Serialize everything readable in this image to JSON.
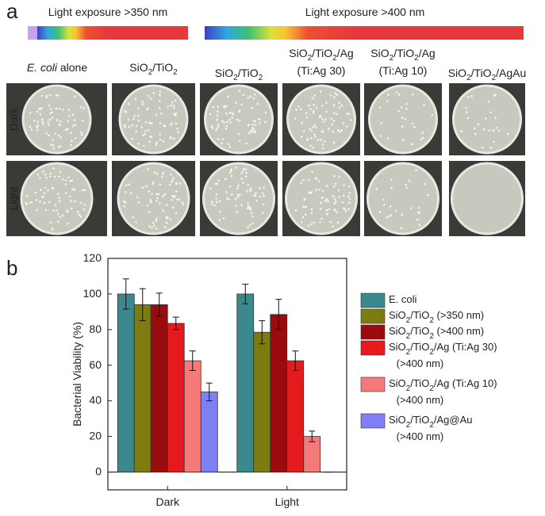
{
  "panel_a": {
    "label": "a",
    "exposures": [
      "Light exposure >350 nm",
      "Light exposure >400 nm"
    ],
    "ecoli": {
      "species": "E. coli",
      "rest": "alone"
    },
    "columns": [
      [
        "SiO2/TiO2"
      ],
      [
        "SiO2/TiO2"
      ],
      [
        "SiO2/TiO2/Ag",
        "(Ti:Ag 30)"
      ],
      [
        "SiO2/TiO2/Ag",
        "(Ti:Ag 10)"
      ],
      [
        "SiO2/TiO2/AgAu"
      ]
    ],
    "rows": [
      "Dark",
      "Light"
    ]
  },
  "panel_b": {
    "label": "b"
  },
  "chart_data": {
    "type": "bar",
    "y_label": "Bacterial Viability (%)",
    "categories": [
      "Dark",
      "Light"
    ],
    "series": [
      {
        "name": "E. coli",
        "color": "#3b898d",
        "values": [
          100,
          100
        ],
        "errors": [
          8.5,
          5.5
        ]
      },
      {
        "name": "SiO2/TiO2 (>350 nm)",
        "color": "#7c7c10",
        "values": [
          94,
          78.5
        ],
        "errors": [
          9,
          6.5
        ]
      },
      {
        "name": "SiO2/TiO2 (>400 nm)",
        "color": "#9a0b0d",
        "values": [
          94,
          88.5
        ],
        "errors": [
          6.5,
          8.5
        ]
      },
      {
        "name": "SiO2/TiO2/Ag (Ti:Ag 30) (>400 nm)",
        "color": "#e6191c",
        "values": [
          83.5,
          62.5
        ],
        "errors": [
          3.5,
          5.5
        ]
      },
      {
        "name": "SiO2/TiO2/Ag (Ti:Ag 10) (>400 nm)",
        "color": "#f47a7a",
        "values": [
          62.5,
          20
        ],
        "errors": [
          5.5,
          3
        ]
      },
      {
        "name": "SiO2/TiO2/Ag@Au (>400 nm)",
        "color": "#8080f6",
        "values": [
          45,
          0
        ],
        "errors": [
          5,
          0
        ]
      }
    ],
    "ylim": [
      -10,
      120
    ],
    "yticks": [
      0,
      20,
      40,
      60,
      80,
      100,
      120
    ]
  }
}
